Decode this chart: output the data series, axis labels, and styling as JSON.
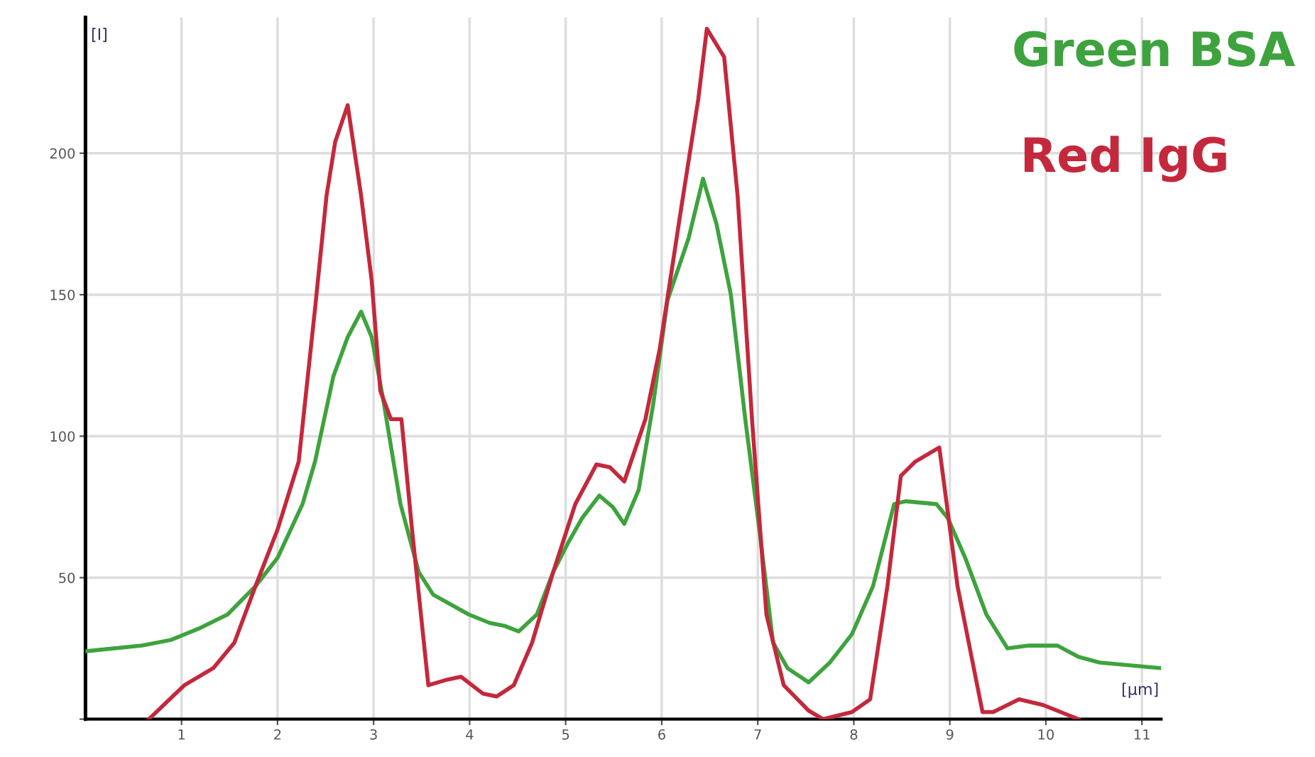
{
  "chart_data": {
    "type": "line",
    "xlabel": "[µm]",
    "ylabel": "[I]",
    "xlim": [
      0,
      11.2
    ],
    "ylim": [
      0,
      248
    ],
    "xticks": [
      1,
      2,
      3,
      4,
      5,
      6,
      7,
      8,
      9,
      10,
      11
    ],
    "yticks": [
      {
        "value": 0,
        "label": null
      },
      50,
      100,
      150,
      200
    ],
    "grid": true,
    "legend": "top right",
    "marker": "none",
    "line_style": "solid",
    "series": [
      {
        "name": "Green BSA",
        "color": "#3ea33e",
        "x": [
          0,
          0.59,
          0.89,
          1.18,
          1.48,
          1.77,
          2.0,
          2.26,
          2.39,
          2.58,
          2.73,
          2.87,
          2.98,
          3.1,
          3.28,
          3.47,
          3.62,
          3.99,
          4.21,
          4.36,
          4.51,
          4.7,
          4.87,
          5.02,
          5.17,
          5.35,
          5.49,
          5.61,
          5.76,
          5.91,
          6.06,
          6.28,
          6.43,
          6.57,
          6.72,
          6.87,
          7.02,
          7.16,
          7.31,
          7.53,
          7.75,
          7.98,
          8.2,
          8.42,
          8.54,
          8.86,
          8.98,
          9.16,
          9.38,
          9.6,
          9.82,
          10.12,
          10.34,
          10.56,
          11.2
        ],
        "values": [
          24,
          26,
          28,
          32,
          37,
          47,
          57,
          76,
          91,
          121,
          135,
          144,
          135,
          113,
          76,
          52,
          44,
          37,
          34,
          33,
          31,
          37,
          52,
          62,
          71,
          79,
          75,
          69,
          81,
          111,
          148,
          170,
          191,
          175,
          150,
          106,
          66,
          27,
          18,
          13,
          20,
          30,
          47,
          76,
          77,
          76,
          71,
          57,
          37,
          25,
          26,
          26,
          22,
          20,
          18
        ]
      },
      {
        "name": "Red IgG",
        "color": "#c4283c",
        "x": [
          0.66,
          1.03,
          1.33,
          1.55,
          1.77,
          2.0,
          2.22,
          2.39,
          2.51,
          2.6,
          2.73,
          2.87,
          2.98,
          3.07,
          3.18,
          3.29,
          3.4,
          3.57,
          3.77,
          3.91,
          4.14,
          4.28,
          4.46,
          4.65,
          4.87,
          5.1,
          5.32,
          5.46,
          5.61,
          5.83,
          5.98,
          6.2,
          6.38,
          6.47,
          6.65,
          6.79,
          6.94,
          7.09,
          7.27,
          7.53,
          7.68,
          7.98,
          8.17,
          8.35,
          8.49,
          8.64,
          8.89,
          9.08,
          9.34,
          9.45,
          9.72,
          9.97,
          10.34
        ],
        "values": [
          0,
          12,
          18,
          27,
          47,
          67,
          91,
          145,
          185,
          204,
          217,
          185,
          155,
          116,
          106,
          106,
          67,
          12,
          14,
          15,
          9,
          8,
          12,
          27,
          52,
          76,
          90,
          89,
          84,
          106,
          131,
          180,
          219,
          244,
          234,
          185,
          106,
          37,
          12,
          3,
          0,
          2.5,
          7,
          47,
          86,
          91,
          96,
          47,
          2.5,
          2.5,
          7,
          5,
          0
        ]
      }
    ]
  }
}
